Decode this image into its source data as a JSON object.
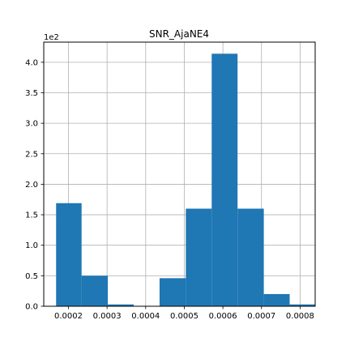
{
  "chart_data": {
    "type": "bar",
    "title": "SNR_AjaNE4",
    "xlabel": "",
    "ylabel": "",
    "y_offset_label": "1e2",
    "xlim": [
      0.000136,
      0.000839
    ],
    "ylim": [
      0,
      4.33
    ],
    "grid": true,
    "color": "#1f77b4",
    "bins": [
      {
        "left": 0.000168,
        "right": 0.000234,
        "value": 1.69
      },
      {
        "left": 0.000234,
        "right": 0.000302,
        "value": 0.5
      },
      {
        "left": 0.000302,
        "right": 0.000369,
        "value": 0.03
      },
      {
        "left": 0.000369,
        "right": 0.000436,
        "value": 0.0
      },
      {
        "left": 0.000436,
        "right": 0.000504,
        "value": 0.46
      },
      {
        "left": 0.000504,
        "right": 0.000571,
        "value": 1.6
      },
      {
        "left": 0.000571,
        "right": 0.000638,
        "value": 4.14
      },
      {
        "left": 0.000638,
        "right": 0.000706,
        "value": 1.6
      },
      {
        "left": 0.000706,
        "right": 0.000773,
        "value": 0.2
      },
      {
        "left": 0.000773,
        "right": 0.00084,
        "value": 0.03
      }
    ],
    "xticks": [
      0.0002,
      0.0003,
      0.0004,
      0.0005,
      0.0006,
      0.0007,
      0.0008
    ],
    "xtick_labels": [
      "0.0002",
      "0.0003",
      "0.0004",
      "0.0005",
      "0.0006",
      "0.0007",
      "0.0008"
    ],
    "yticks": [
      0,
      0.5,
      1.0,
      1.5,
      2.0,
      2.5,
      3.0,
      3.5,
      4.0
    ],
    "ytick_labels": [
      "0.0",
      "0.5",
      "1.0",
      "1.5",
      "2.0",
      "2.5",
      "3.0",
      "3.5",
      "4.0"
    ]
  }
}
